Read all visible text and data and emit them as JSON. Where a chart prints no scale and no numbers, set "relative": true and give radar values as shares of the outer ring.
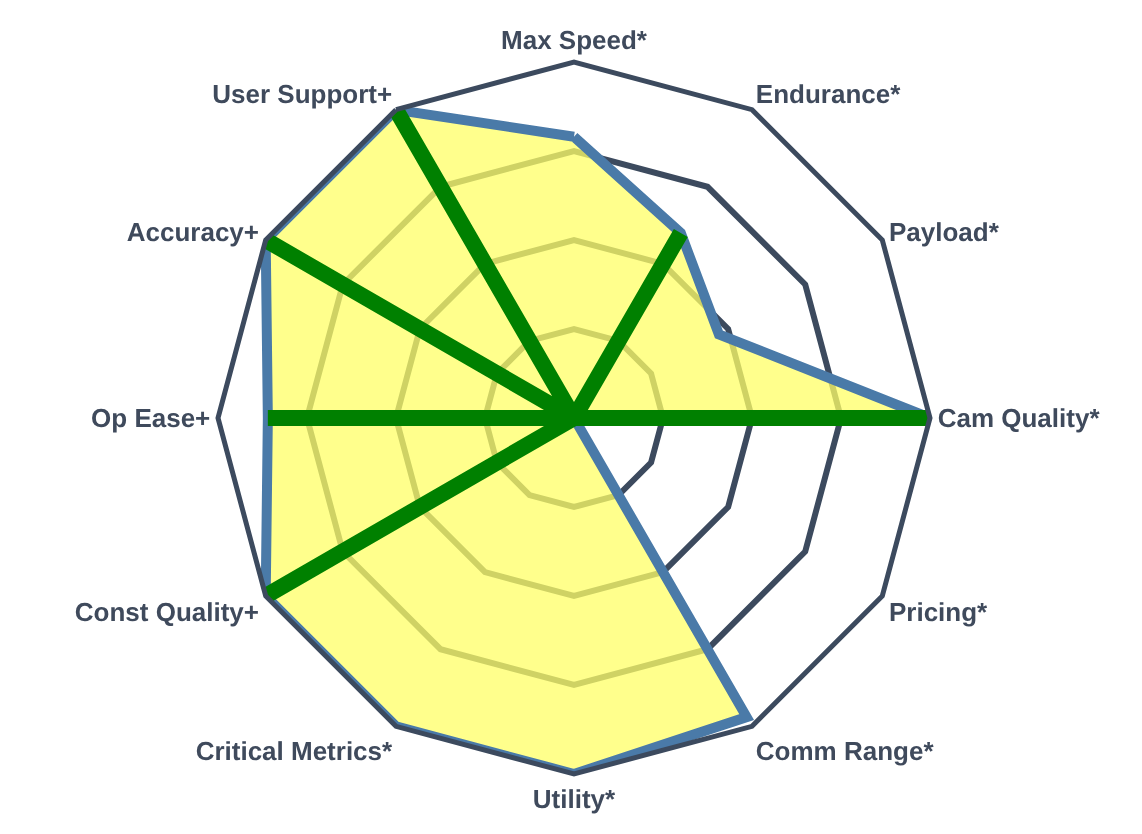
{
  "chart_data": {
    "type": "radar",
    "relative": true,
    "categories": [
      "Max Speed*",
      "Endurance*",
      "Payload*",
      "Cam Quality*",
      "Pricing*",
      "Comm Range*",
      "Utility*",
      "Critical Metrics*",
      "Const Quality+",
      "Op Ease+",
      "Accuracy+",
      "User Support+"
    ],
    "series": [
      {
        "type": "radar",
        "color": "#ffff66",
        "values": [
          0.79,
          0.6,
          0.47,
          1,
          0,
          0.97,
          1,
          1,
          1,
          0.86,
          1,
          1
        ]
      },
      {
        "type": "bar",
        "color": "#008000",
        "values": [
          null,
          0.6,
          null,
          1,
          null,
          null,
          null,
          null,
          1,
          0.86,
          1,
          1
        ]
      }
    ]
  }
}
